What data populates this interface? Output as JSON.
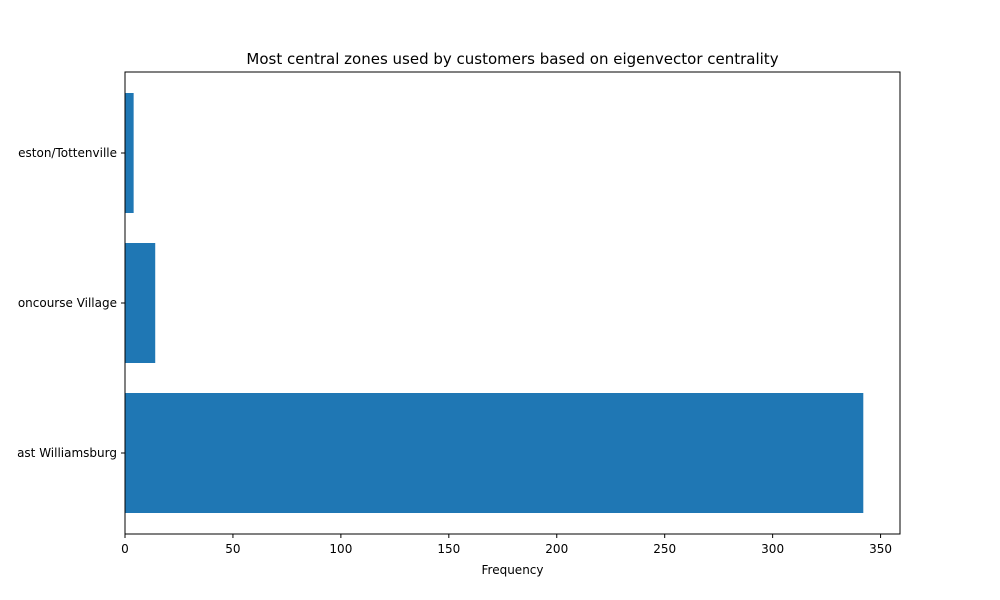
{
  "chart_data": {
    "type": "bar",
    "orientation": "horizontal",
    "title": "Most central zones used by customers based on eigenvector centrality",
    "xlabel": "Frequency",
    "ylabel": "",
    "categories": [
      "East Williamsburg",
      "Concourse Village",
      "Charleston/Tottenville"
    ],
    "category_labels_visible": [
      "ast Williamsburg",
      "oncourse Village",
      "eston/Tottenville"
    ],
    "values": [
      342,
      14,
      4
    ],
    "xlim": [
      0,
      359
    ],
    "xticks": [
      0,
      50,
      100,
      150,
      200,
      250,
      300,
      350
    ],
    "grid": false,
    "legend": "none",
    "bar_color": "#1f77b4"
  }
}
